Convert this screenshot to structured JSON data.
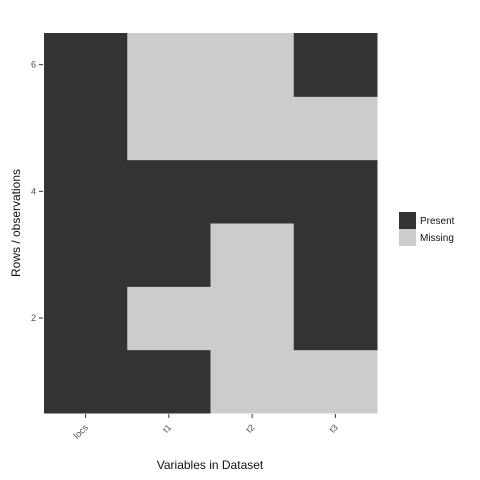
{
  "chart_data": {
    "type": "heatmap",
    "title": "",
    "xlabel": "Variables in Dataset",
    "ylabel": "Rows / observations",
    "columns": [
      "locs",
      "t1",
      "t2",
      "t3"
    ],
    "rows": [
      1,
      2,
      3,
      4,
      5,
      6
    ],
    "y_tick_labels": [
      "2",
      "4",
      "6"
    ],
    "y_tick_values": [
      2,
      4,
      6
    ],
    "ylim": [
      0.5,
      6.5
    ],
    "cells": [
      [
        "Present",
        "Present",
        "Missing",
        "Missing"
      ],
      [
        "Present",
        "Missing",
        "Missing",
        "Present"
      ],
      [
        "Present",
        "Present",
        "Missing",
        "Present"
      ],
      [
        "Present",
        "Present",
        "Present",
        "Present"
      ],
      [
        "Present",
        "Missing",
        "Missing",
        "Missing"
      ],
      [
        "Present",
        "Missing",
        "Missing",
        "Present"
      ]
    ],
    "legend": {
      "position": "right",
      "entries": [
        {
          "label": "Present",
          "color": "#333333"
        },
        {
          "label": "Missing",
          "color": "#cccccc"
        }
      ]
    },
    "grid": true,
    "colors": {
      "present": "#333333",
      "missing": "#cccccc",
      "panel_background": "#ffffff",
      "gridline": "#f2f2f2"
    }
  }
}
